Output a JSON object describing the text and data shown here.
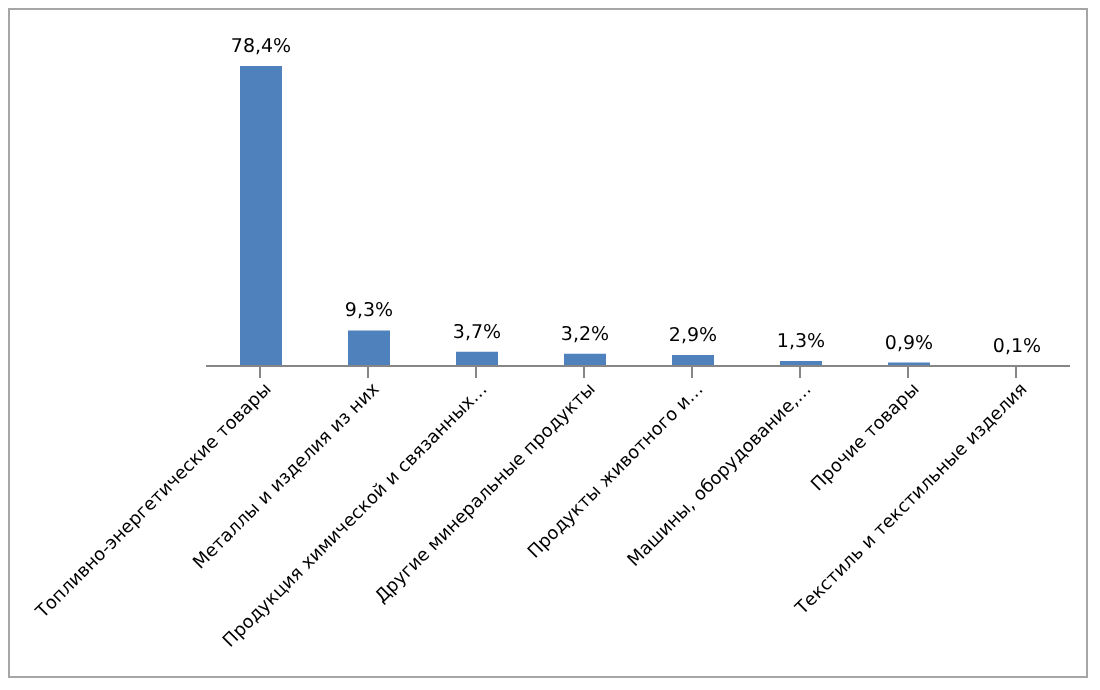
{
  "chart_data": {
    "type": "bar",
    "categories": [
      "Топливно-энергетические товары",
      "Металлы и изделия из них",
      "Продукция химической и связанных…",
      "Другие минеральные продукты",
      "Продукты животного и…",
      "Машины, оборудование,…",
      "Прочие товары",
      "Текстиль и текстильные изделия"
    ],
    "values": [
      78.4,
      9.3,
      3.7,
      3.2,
      2.9,
      1.3,
      0.9,
      0.1
    ],
    "value_labels": [
      "78,4%",
      "9,3%",
      "3,7%",
      "3,2%",
      "2,9%",
      "1,3%",
      "0,9%",
      "0,1%"
    ],
    "color": "#4f81bd",
    "grid": false,
    "legend": false
  }
}
